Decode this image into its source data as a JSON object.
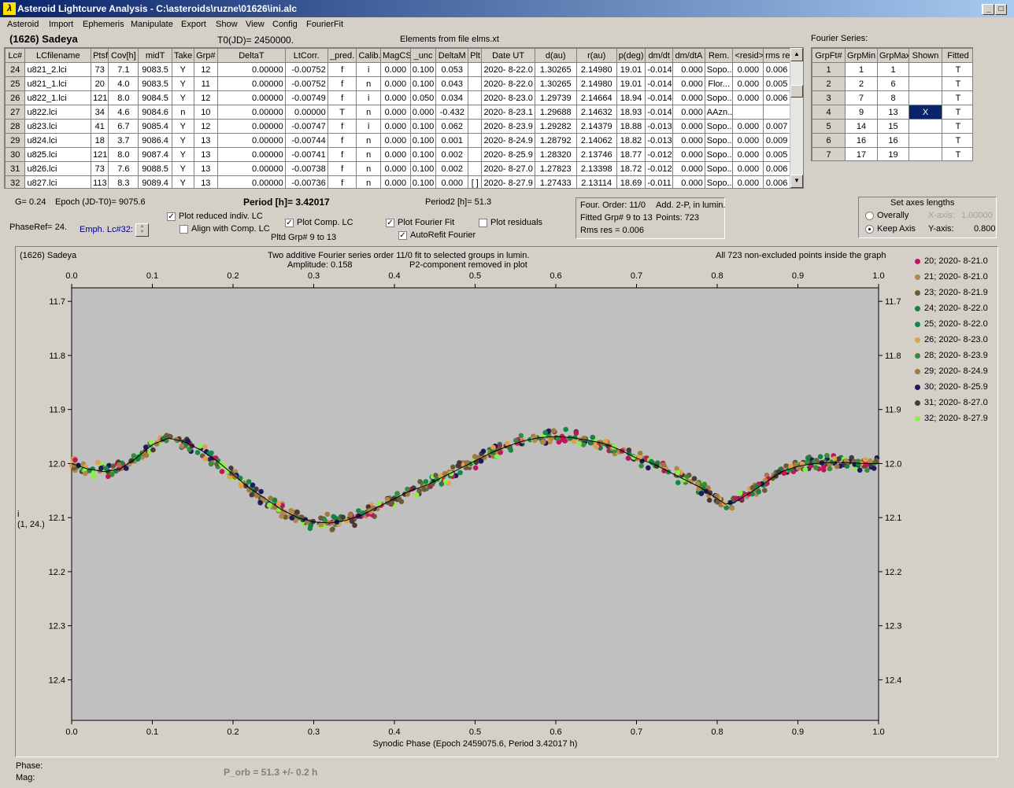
{
  "window": {
    "title": "Asteroid Lightcurve Analysis - C:\\asteroids\\ruzne\\01626\\ini.alc",
    "icon": "app-logo-icon"
  },
  "menu": [
    "Asteroid",
    "Import",
    "Ephemeris",
    "Manipulate",
    "Export",
    "Show",
    "View",
    "Config",
    "FourierFit"
  ],
  "header": {
    "asteroid": "(1626) Sadeya",
    "t0": "T0(JD)= 2450000.",
    "elements": "Elements from file elms.xt"
  },
  "lc_table": {
    "columns": [
      "Lc#",
      "LCfilename",
      "Ptsf",
      "Cov[h]",
      "midT",
      "Take",
      "Grp#",
      "DeltaT",
      "LtCorr.",
      "_pred.",
      "Calib.",
      "MagCS",
      "_unc",
      "DeltaM",
      "Plt",
      "Date UT",
      "d(au)",
      "r(au)",
      "p(deg)",
      "dm/dt",
      "dm/dtA",
      "Rem.",
      "<resid>",
      "rms res"
    ],
    "rows": [
      [
        "24",
        "u821_2.lci",
        "73",
        "7.1",
        "9083.5",
        "Y",
        "12",
        "0.00000",
        "-0.00752",
        "f",
        "i",
        "0.000",
        "0.100",
        "0.053",
        "",
        "2020- 8-22.0",
        "1.30265",
        "2.14980",
        "19.01",
        "-0.014",
        "0.000",
        "Sopo...",
        "0.000",
        "0.006"
      ],
      [
        "25",
        "u821_1.lci",
        "20",
        "4.0",
        "9083.5",
        "Y",
        "11",
        "0.00000",
        "-0.00752",
        "f",
        "n",
        "0.000",
        "0.100",
        "0.043",
        "",
        "2020- 8-22.0",
        "1.30265",
        "2.14980",
        "19.01",
        "-0.014",
        "0.000",
        "Flor...",
        "0.000",
        "0.005"
      ],
      [
        "26",
        "u822_1.lci",
        "121",
        "8.0",
        "9084.5",
        "Y",
        "12",
        "0.00000",
        "-0.00749",
        "f",
        "i",
        "0.000",
        "0.050",
        "0.034",
        "",
        "2020- 8-23.0",
        "1.29739",
        "2.14664",
        "18.94",
        "-0.014",
        "0.000",
        "Sopo...",
        "0.000",
        "0.006"
      ],
      [
        "27",
        "u822.lci",
        "34",
        "4.6",
        "9084.6",
        "n",
        "10",
        "0.00000",
        "0.00000",
        "T",
        "n",
        "0.000",
        "0.000",
        "-0.432",
        "",
        "2020- 8-23.1",
        "1.29688",
        "2.14632",
        "18.93",
        "-0.014",
        "0.000",
        "AAzn...",
        "",
        ""
      ],
      [
        "28",
        "u823.lci",
        "41",
        "6.7",
        "9085.4",
        "Y",
        "12",
        "0.00000",
        "-0.00747",
        "f",
        "i",
        "0.000",
        "0.100",
        "0.062",
        "",
        "2020- 8-23.9",
        "1.29282",
        "2.14379",
        "18.88",
        "-0.013",
        "0.000",
        "Sopo...",
        "0.000",
        "0.007"
      ],
      [
        "29",
        "u824.lci",
        "18",
        "3.7",
        "9086.4",
        "Y",
        "13",
        "0.00000",
        "-0.00744",
        "f",
        "n",
        "0.000",
        "0.100",
        "0.001",
        "",
        "2020- 8-24.9",
        "1.28792",
        "2.14062",
        "18.82",
        "-0.013",
        "0.000",
        "Sopo...",
        "0.000",
        "0.009"
      ],
      [
        "30",
        "u825.lci",
        "121",
        "8.0",
        "9087.4",
        "Y",
        "13",
        "0.00000",
        "-0.00741",
        "f",
        "n",
        "0.000",
        "0.100",
        "0.002",
        "",
        "2020- 8-25.9",
        "1.28320",
        "2.13746",
        "18.77",
        "-0.012",
        "0.000",
        "Sopo...",
        "0.000",
        "0.005"
      ],
      [
        "31",
        "u826.lci",
        "73",
        "7.6",
        "9088.5",
        "Y",
        "13",
        "0.00000",
        "-0.00738",
        "f",
        "n",
        "0.000",
        "0.100",
        "0.002",
        "",
        "2020- 8-27.0",
        "1.27823",
        "2.13398",
        "18.72",
        "-0.012",
        "0.000",
        "Sopo...",
        "0.000",
        "0.006"
      ],
      [
        "32",
        "u827.lci",
        "113",
        "8.3",
        "9089.4",
        "Y",
        "13",
        "0.00000",
        "-0.00736",
        "f",
        "n",
        "0.000",
        "0.100",
        "0.000",
        "[ ]",
        "2020- 8-27.9",
        "1.27433",
        "2.13114",
        "18.69",
        "-0.011",
        "0.000",
        "Sopo...",
        "0.000",
        "0.006"
      ]
    ]
  },
  "fourier": {
    "title": "Fourier Series:",
    "columns": [
      "GrpFt#",
      "GrpMin",
      "GrpMax",
      "Shown",
      "Fitted"
    ],
    "rows": [
      [
        "1",
        "1",
        "1",
        "",
        "T"
      ],
      [
        "2",
        "2",
        "6",
        "",
        "T"
      ],
      [
        "3",
        "7",
        "8",
        "",
        "T"
      ],
      [
        "4",
        "9",
        "13",
        "X",
        "T"
      ],
      [
        "5",
        "14",
        "15",
        "",
        "T"
      ],
      [
        "6",
        "16",
        "16",
        "",
        "T"
      ],
      [
        "7",
        "17",
        "19",
        "",
        "T"
      ]
    ]
  },
  "controls": {
    "g": "G= 0.24",
    "epoch": "Epoch (JD-T0)= 9075.6",
    "period": "Period [h]= 3.42017",
    "period2": "Period2 [h]= 51.3",
    "phaseref": "PhaseRef= 24.",
    "emph": "Emph. Lc#32:",
    "plot_reduced": "Plot reduced indiv. LC",
    "align_comp": "Align with Comp. LC",
    "plot_comp": "Plot Comp. LC",
    "plot_fourier": "Plot Fourier Fit",
    "plot_residuals": "Plot residuals",
    "autorefit": "AutoRefit Fourier",
    "pltd_grp": "Pltd Grp#  9  to  13",
    "plot_reduced_checked": true,
    "align_comp_checked": false,
    "plot_comp_checked": true,
    "plot_fourier_checked": true,
    "plot_residuals_checked": false,
    "autorefit_checked": true
  },
  "fitinfo": {
    "l1a": "Four. Order: 11/0",
    "l1b": "Add. 2-P, in lumin.",
    "l2a": "Fitted Grp# 9 to 13",
    "l2b": "Points: 723",
    "l3": "Rms res     = 0.006"
  },
  "axes_box": {
    "title": "Set axes lengths",
    "overally": "Overally",
    "keep": "Keep Axis",
    "xaxis_label": "X-axis:",
    "xaxis_val": "1.00000",
    "yaxis_label": "Y-axis:",
    "yaxis_val": "0.800"
  },
  "plot_header": {
    "name": "(1626) Sadeya",
    "desc1": "Two additive Fourier series order 11/0 fit to selected groups in lumin.",
    "desc2a": "Amplitude: 0.158",
    "desc2b": "P2-component removed in plot",
    "right": "All 723 non-excluded points inside the graph",
    "ylabel1": "i",
    "ylabel2": "(1, 24.)"
  },
  "chart_data": {
    "type": "scatter",
    "xlabel": "Synodic Phase (Epoch 2459075.6, Period 3.42017 h)",
    "ylabel": "i",
    "xlim": [
      0,
      1
    ],
    "ylim": [
      12.475,
      11.675
    ],
    "y_inverted": true,
    "xticks": [
      "0.0",
      "0.1",
      "0.2",
      "0.3",
      "0.4",
      "0.5",
      "0.6",
      "0.7",
      "0.8",
      "0.9",
      "1.0"
    ],
    "yticks": [
      "11.7",
      "11.8",
      "11.9",
      "12.0",
      "12.1",
      "12.2",
      "12.3",
      "12.4"
    ],
    "fit_curve": {
      "x": [
        0.0,
        0.02,
        0.04,
        0.06,
        0.08,
        0.1,
        0.12,
        0.14,
        0.16,
        0.18,
        0.2,
        0.22,
        0.24,
        0.26,
        0.28,
        0.3,
        0.32,
        0.34,
        0.36,
        0.38,
        0.4,
        0.42,
        0.44,
        0.46,
        0.48,
        0.5,
        0.52,
        0.54,
        0.56,
        0.58,
        0.6,
        0.62,
        0.64,
        0.66,
        0.68,
        0.7,
        0.72,
        0.74,
        0.76,
        0.78,
        0.8,
        0.81,
        0.82,
        0.84,
        0.86,
        0.88,
        0.9,
        0.92,
        0.94,
        0.96,
        0.98,
        1.0
      ],
      "y": [
        12.0,
        12.01,
        12.015,
        12.01,
        11.99,
        11.965,
        11.953,
        11.96,
        11.975,
        11.995,
        12.02,
        12.045,
        12.065,
        12.085,
        12.1,
        12.108,
        12.11,
        12.105,
        12.095,
        12.08,
        12.065,
        12.05,
        12.04,
        12.025,
        12.01,
        11.995,
        11.98,
        11.968,
        11.958,
        11.952,
        11.95,
        11.952,
        11.957,
        11.963,
        11.975,
        11.99,
        12.0,
        12.015,
        12.03,
        12.045,
        12.065,
        12.075,
        12.073,
        12.055,
        12.035,
        12.015,
        12.005,
        12.0,
        11.998,
        11.998,
        12.0,
        12.0
      ]
    },
    "series": [
      {
        "name": "20; 2020- 8-21.0",
        "color": "#c0145c"
      },
      {
        "name": "21; 2020- 8-21.0",
        "color": "#b08848"
      },
      {
        "name": "23; 2020- 8-21.9",
        "color": "#6a5a38"
      },
      {
        "name": "24; 2020- 8-22.0",
        "color": "#1a8040"
      },
      {
        "name": "25; 2020- 8-22.0",
        "color": "#148848"
      },
      {
        "name": "26; 2020- 8-23.0",
        "color": "#e0a050"
      },
      {
        "name": "28; 2020- 8-23.9",
        "color": "#3a8a3a"
      },
      {
        "name": "29; 2020- 8-24.9",
        "color": "#a07840"
      },
      {
        "name": "30; 2020- 8-25.9",
        "color": "#1a1a60"
      },
      {
        "name": "31; 2020- 8-27.0",
        "color": "#4a3838"
      },
      {
        "name": "32; 2020- 8-27.9",
        "color": "#88f048"
      }
    ]
  },
  "status": {
    "phase": "Phase:",
    "mag": "Mag:",
    "porb": "P_orb = 51.3 +/- 0.2 h"
  }
}
